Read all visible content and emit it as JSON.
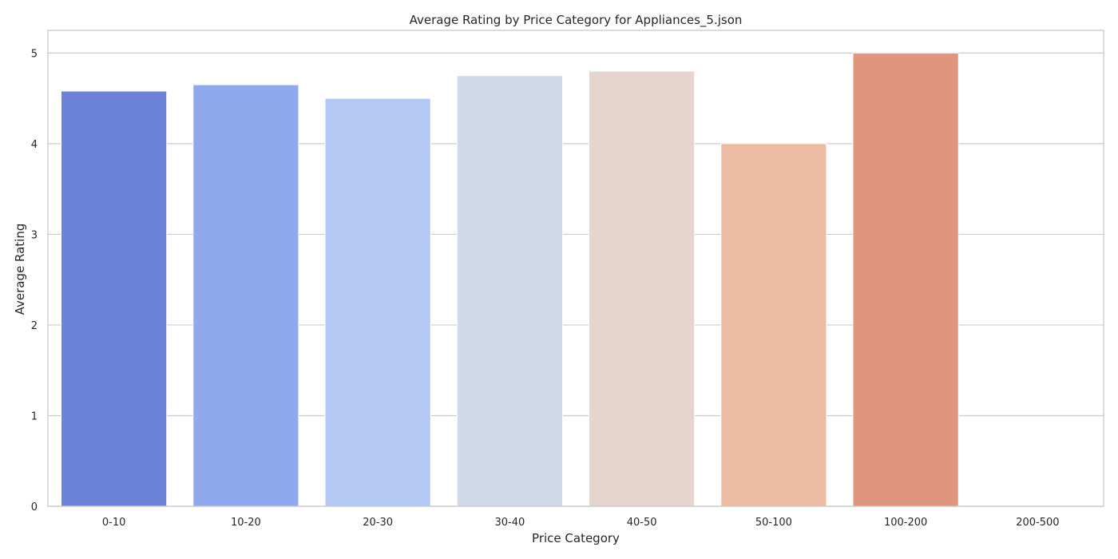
{
  "chart_data": {
    "type": "bar",
    "title": "Average Rating by Price Category for Appliances_5.json",
    "xlabel": "Price Category",
    "ylabel": "Average Rating",
    "categories": [
      "0-10",
      "10-20",
      "20-30",
      "30-40",
      "40-50",
      "50-100",
      "100-200",
      "200-500"
    ],
    "values": [
      4.58,
      4.65,
      4.5,
      4.75,
      4.8,
      4.0,
      5.0,
      null
    ],
    "colors": [
      "#6b84d8",
      "#8eaaec",
      "#b3c8f3",
      "#d0d9e8",
      "#e5d5cc",
      "#ecbba4",
      "#e0967d",
      "#ffffff"
    ],
    "ylim": [
      0,
      5.25
    ],
    "yticks": [
      0,
      1,
      2,
      3,
      4,
      5
    ],
    "grid": "horizontal"
  }
}
